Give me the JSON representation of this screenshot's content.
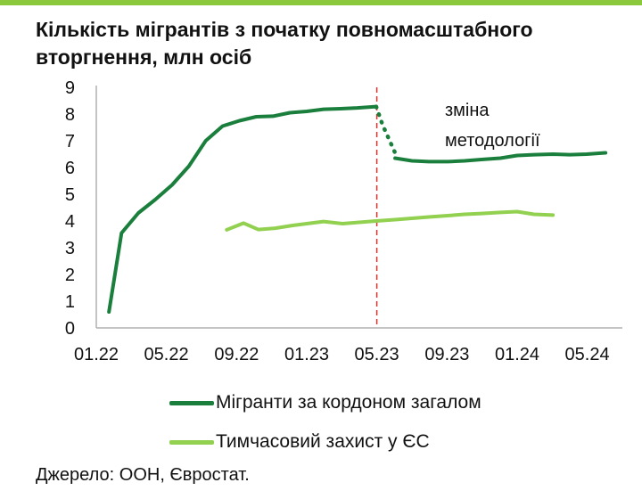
{
  "title": "Кількість мігрантів з початку повномасштабного вторгнення, млн осіб",
  "source": "Джерело: ООН, Євростат.",
  "annotation": {
    "line1": "зміна",
    "line2": "методології"
  },
  "legend": [
    {
      "label": "Мігранти за кордоном загалом",
      "color": "#1a7f3c"
    },
    {
      "label": "Тимчасовий захист у ЄС",
      "color": "#92d050"
    }
  ],
  "colors": {
    "accent_rule": "#8cc83c",
    "axis": "#b0b0b0",
    "marker": "#d9342b"
  },
  "chart_data": {
    "type": "line",
    "title": "Кількість мігрантів з початку повномасштабного вторгнення, млн осіб",
    "xlabel": "",
    "ylabel": "",
    "ylim": [
      0,
      9
    ],
    "xlim": [
      2022.0,
      2024.5
    ],
    "x_ticks": [
      {
        "x": 2022.0,
        "label": "01.22"
      },
      {
        "x": 2022.333,
        "label": "05.22"
      },
      {
        "x": 2022.667,
        "label": "09.22"
      },
      {
        "x": 2023.0,
        "label": "01.23"
      },
      {
        "x": 2023.333,
        "label": "05.23"
      },
      {
        "x": 2023.667,
        "label": "09.23"
      },
      {
        "x": 2024.0,
        "label": "01.24"
      },
      {
        "x": 2024.333,
        "label": "05.24"
      }
    ],
    "y_ticks": [
      0,
      1,
      2,
      3,
      4,
      5,
      6,
      7,
      8,
      9
    ],
    "grid": false,
    "legend_position": "bottom",
    "vertical_marker": {
      "x": 2023.333,
      "style": "dashed"
    },
    "series": [
      {
        "name": "Мігранти за кордоном загалом",
        "color": "#1a7f3c",
        "segments": [
          {
            "style": "solid",
            "points": [
              [
                2022.06,
                0.6
              ],
              [
                2022.12,
                3.55
              ],
              [
                2022.2,
                4.3
              ],
              [
                2022.28,
                4.8
              ],
              [
                2022.36,
                5.35
              ],
              [
                2022.44,
                6.05
              ],
              [
                2022.52,
                7.0
              ],
              [
                2022.6,
                7.55
              ],
              [
                2022.68,
                7.75
              ],
              [
                2022.76,
                7.9
              ],
              [
                2022.84,
                7.92
              ],
              [
                2022.92,
                8.05
              ],
              [
                2023.0,
                8.1
              ],
              [
                2023.08,
                8.18
              ],
              [
                2023.16,
                8.2
              ],
              [
                2023.24,
                8.23
              ],
              [
                2023.33,
                8.28
              ]
            ]
          },
          {
            "style": "dotted",
            "points": [
              [
                2023.33,
                8.28
              ],
              [
                2023.36,
                7.6
              ],
              [
                2023.4,
                6.9
              ],
              [
                2023.42,
                6.55
              ]
            ]
          },
          {
            "style": "solid",
            "points": [
              [
                2023.42,
                6.35
              ],
              [
                2023.5,
                6.25
              ],
              [
                2023.58,
                6.22
              ],
              [
                2023.67,
                6.22
              ],
              [
                2023.75,
                6.25
              ],
              [
                2023.83,
                6.3
              ],
              [
                2023.92,
                6.35
              ],
              [
                2024.0,
                6.45
              ],
              [
                2024.08,
                6.48
              ],
              [
                2024.17,
                6.5
              ],
              [
                2024.25,
                6.48
              ],
              [
                2024.33,
                6.5
              ],
              [
                2024.42,
                6.55
              ]
            ]
          }
        ]
      },
      {
        "name": "Тимчасовий захист у ЄС",
        "color": "#92d050",
        "segments": [
          {
            "style": "solid",
            "points": [
              [
                2022.62,
                3.67
              ],
              [
                2022.7,
                3.92
              ],
              [
                2022.77,
                3.68
              ],
              [
                2022.85,
                3.73
              ],
              [
                2022.93,
                3.83
              ],
              [
                2023.0,
                3.9
              ],
              [
                2023.08,
                3.98
              ],
              [
                2023.17,
                3.9
              ],
              [
                2023.25,
                3.95
              ],
              [
                2023.33,
                4.0
              ],
              [
                2023.42,
                4.05
              ],
              [
                2023.5,
                4.1
              ],
              [
                2023.58,
                4.15
              ],
              [
                2023.67,
                4.2
              ],
              [
                2023.75,
                4.25
              ],
              [
                2023.83,
                4.28
              ],
              [
                2023.92,
                4.32
              ],
              [
                2024.0,
                4.35
              ],
              [
                2024.08,
                4.25
              ],
              [
                2024.17,
                4.22
              ]
            ]
          }
        ]
      }
    ]
  }
}
